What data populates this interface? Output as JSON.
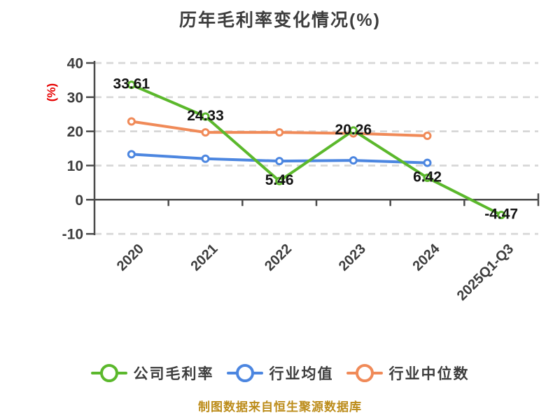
{
  "title": "历年毛利率变化情况(%)",
  "y_axis_label": "(%)",
  "footer": "制图数据来自恒生聚源数据库",
  "colors": {
    "background": "#FFFFFF",
    "title": "#3D3D3D",
    "tick_label": "#3D3D3D",
    "axis": "#4A4A4A",
    "grid": "#D7D7D7",
    "value_label": "#141414",
    "y_unit": "#E60000",
    "footer": "#BC8C1A",
    "series_green": "#5BB82C",
    "series_blue": "#4C86E0",
    "series_orange": "#F08A58"
  },
  "chart_data": {
    "type": "line",
    "title": "历年毛利率变化情况(%)",
    "ylabel": "(%)",
    "categories": [
      "2020",
      "2021",
      "2022",
      "2023",
      "2024",
      "2025Q1-Q3"
    ],
    "series": [
      {
        "name": "公司毛利率",
        "color": "#5BB82C",
        "values": [
          33.61,
          24.33,
          5.46,
          20.26,
          6.42,
          -4.47
        ],
        "data_labels": true
      },
      {
        "name": "行业均值",
        "color": "#4C86E0",
        "values": [
          13.3,
          12.0,
          11.3,
          11.5,
          10.8,
          null
        ],
        "data_labels": false
      },
      {
        "name": "行业中位数",
        "color": "#F08A58",
        "values": [
          22.9,
          19.7,
          19.7,
          19.4,
          18.7,
          null
        ],
        "data_labels": false
      }
    ],
    "ylim": [
      -10,
      40
    ],
    "yticks": [
      40,
      30,
      20,
      10,
      0,
      -10
    ],
    "grid": "horizontal-dashed",
    "legend_position": "bottom",
    "x_tick_label_rotation": 45
  }
}
